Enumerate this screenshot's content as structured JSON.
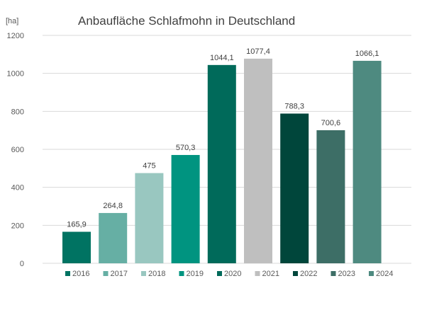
{
  "chart_data": {
    "type": "bar",
    "title": "Anbaufläche Schlafmohn in Deutschland",
    "ylabel": "[ha]",
    "xlabel": "",
    "ylim": [
      0,
      1200
    ],
    "yticks": [
      0,
      200,
      400,
      600,
      800,
      1000,
      1200
    ],
    "grid": true,
    "legend_position": "bottom",
    "categories": [
      "2016",
      "2017",
      "2018",
      "2019",
      "2020",
      "2021",
      "2022",
      "2023",
      "2024"
    ],
    "values": [
      165.9,
      264.8,
      475,
      570.3,
      1044.1,
      1077.4,
      788.3,
      700.6,
      1066.1
    ],
    "value_labels": [
      "165,9",
      "264,8",
      "475",
      "570,3",
      "1044,1",
      "1077,4",
      "788,3",
      "700,6",
      "1066,1"
    ],
    "colors": [
      "#007362",
      "#66AFA4",
      "#99C7C0",
      "#009480",
      "#006A5A",
      "#BFBFBF",
      "#00463B",
      "#3D6E66",
      "#4E8A80"
    ]
  }
}
